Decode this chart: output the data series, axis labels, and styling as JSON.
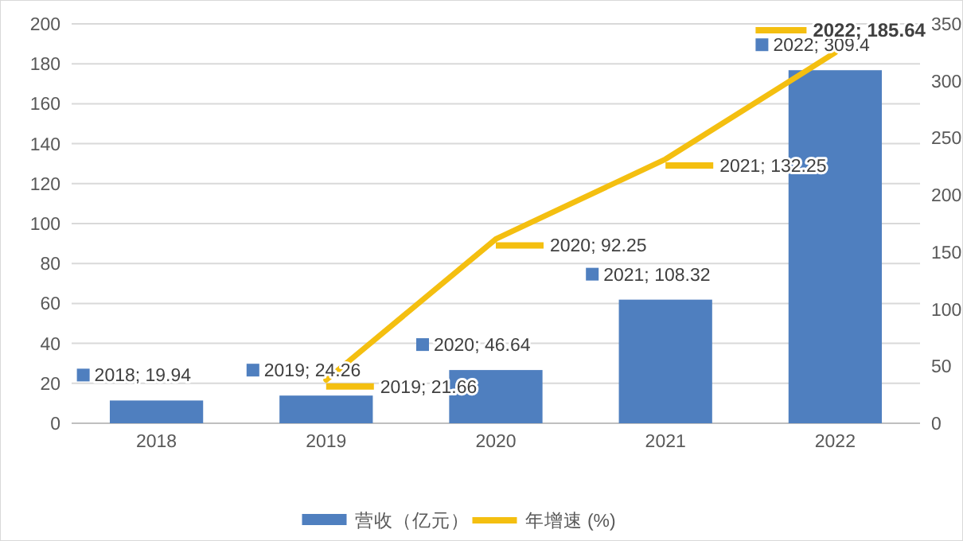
{
  "chart_data": {
    "type": "bar",
    "categories": [
      "2018",
      "2019",
      "2020",
      "2021",
      "2022"
    ],
    "series": [
      {
        "name": "营收（亿元）",
        "axis": "y2",
        "color": "#4f7fbf",
        "values": [
          19.94,
          24.26,
          46.64,
          108.32,
          309.4
        ],
        "value_labels": [
          "2018; 19.94",
          "2019; 24.26",
          "2020; 46.64",
          "2021; 108.32",
          "2022; 309.4"
        ]
      },
      {
        "name": "年增速 (%)",
        "type": "line",
        "axis": "y",
        "color": "#f4bf10",
        "marker": "none",
        "values": [
          null,
          21.66,
          92.25,
          132.25,
          185.64
        ],
        "value_labels": [
          null,
          "2019; 21.66",
          "2020; 92.25",
          "2021; 132.25",
          "2022; 185.64"
        ]
      }
    ],
    "ylim": [
      0,
      200
    ],
    "yticks": [
      0,
      20,
      40,
      60,
      80,
      100,
      120,
      140,
      160,
      180,
      200
    ],
    "y2lim": [
      0,
      350
    ],
    "y2ticks": [
      0,
      50,
      100,
      150,
      200,
      250,
      300,
      350
    ],
    "grid": "y",
    "legend": "bottom"
  }
}
